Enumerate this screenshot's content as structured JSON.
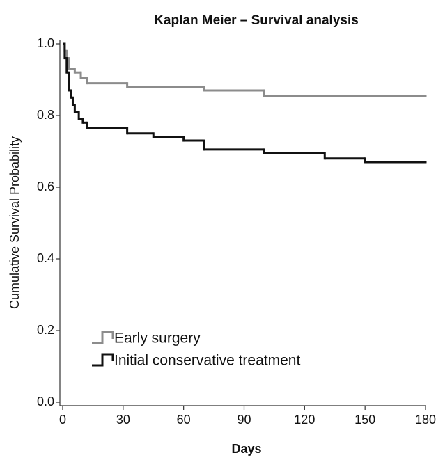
{
  "chart_data": {
    "type": "step",
    "title": "Kaplan Meier – Survival analysis",
    "x_label": "Days",
    "y_label": "Cumulative Survival Probability",
    "xlim": [
      0,
      180
    ],
    "xticks": [
      0,
      30,
      60,
      90,
      120,
      150,
      180
    ],
    "ylim": [
      0,
      1
    ],
    "yticks": [
      {
        "value": 0,
        "label": "0.0"
      },
      0.2,
      0.4,
      0.6,
      0.8,
      {
        "value": 1,
        "label": "1.0"
      }
    ],
    "legend": "lower left",
    "series": [
      {
        "name": "Early surgery",
        "color": "#8c8c8c",
        "x": [
          0,
          1,
          2,
          3,
          6,
          9,
          12,
          32,
          70,
          100,
          180
        ],
        "values": [
          1.0,
          0.98,
          0.96,
          0.93,
          0.92,
          0.905,
          0.89,
          0.88,
          0.87,
          0.855,
          0.855
        ]
      },
      {
        "name": "Initial conservative treatment",
        "color": "#111111",
        "x": [
          0,
          1,
          2,
          3,
          4,
          5,
          6,
          8,
          10,
          12,
          32,
          45,
          60,
          70,
          100,
          130,
          150,
          180
        ],
        "values": [
          1.0,
          0.96,
          0.92,
          0.87,
          0.85,
          0.83,
          0.81,
          0.79,
          0.78,
          0.765,
          0.75,
          0.74,
          0.73,
          0.705,
          0.695,
          0.68,
          0.67,
          0.67
        ]
      }
    ]
  }
}
